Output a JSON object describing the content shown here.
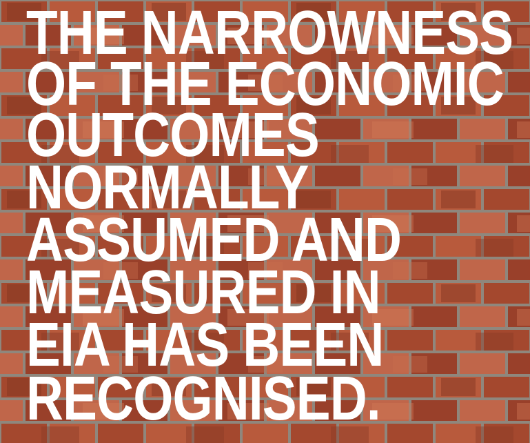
{
  "quote": {
    "lines": [
      "THE NARROWNESS",
      "OF THE ECONOMIC",
      "OUTCOMES",
      "NORMALLY",
      "ASSUMED AND",
      "MEASURED IN",
      "EIA HAS BEEN",
      "RECOGNISED."
    ]
  }
}
